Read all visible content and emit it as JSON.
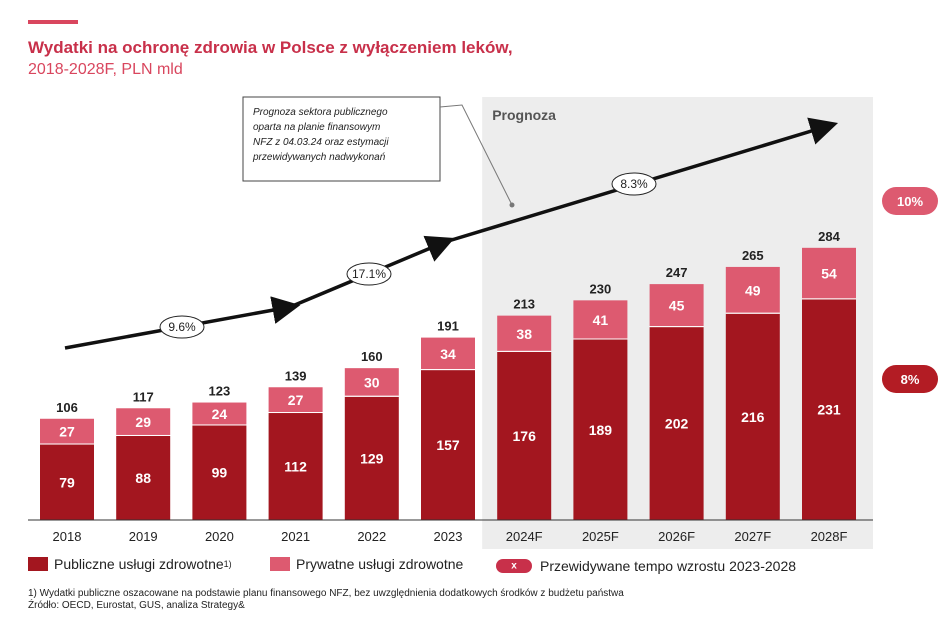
{
  "header": {
    "title": "Wydatki na ochronę zdrowia w Polsce z wyłączeniem leków,",
    "subtitle": "2018-2028F, PLN mld"
  },
  "colors": {
    "accent": "#d9465e",
    "public": "#a3161f",
    "private": "#dd5a70",
    "forecast_bg": "#ededed",
    "arrow": "#111111",
    "badge_pink": "#dd5a70",
    "badge_dark": "#b31c24"
  },
  "chart_data": {
    "type": "bar",
    "stacked": true,
    "categories": [
      "2018",
      "2019",
      "2020",
      "2021",
      "2022",
      "2023",
      "2024F",
      "2025F",
      "2026F",
      "2027F",
      "2028F"
    ],
    "series": [
      {
        "name": "Publiczne usługi zdrowotne",
        "values": [
          79,
          88,
          99,
          112,
          129,
          157,
          176,
          189,
          202,
          216,
          231
        ]
      },
      {
        "name": "Prywatne usługi zdrowotne",
        "values": [
          27,
          29,
          24,
          27,
          30,
          34,
          38,
          41,
          45,
          49,
          54
        ]
      }
    ],
    "totals": [
      106,
      117,
      123,
      139,
      160,
      191,
      213,
      230,
      247,
      265,
      284
    ],
    "ylim": [
      0,
      300
    ],
    "forecast_region": {
      "label": "Prognoza",
      "start_category": "2024F",
      "end_category": "2028F"
    },
    "growth_rates": [
      "9.6%",
      "17.1%",
      "8.3%"
    ],
    "cagr_badges": {
      "private": "10%",
      "public": "8%"
    },
    "annotation": {
      "lines": [
        "Prognoza sektora publicznego",
        "oparta na planie finansowym",
        "NFZ z 04.03.24 oraz estymacji",
        "przewidywanych nadwykonań"
      ]
    },
    "legend_position": "bottom"
  },
  "legend": {
    "public_label": "Publiczne usługi zdrowotne",
    "public_sup": "1)",
    "private_label": "Prywatne usługi zdrowotne",
    "growth_symbol": "x",
    "growth_label": "Przewidywane tempo wzrostu 2023-2028"
  },
  "footnote": "1) Wydatki publiczne oszacowane na podstawie planu finansowego NFZ, bez uwzględnienia dodatkowych środków z budżetu państwa",
  "source": "Źródło: OECD, Eurostat, GUS, analiza Strategy&"
}
